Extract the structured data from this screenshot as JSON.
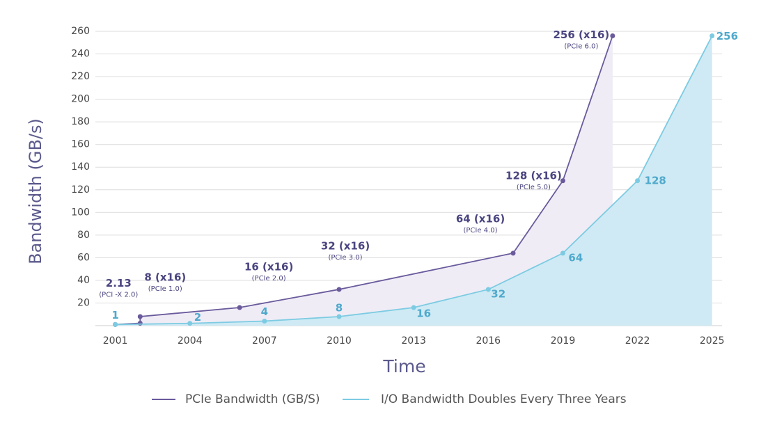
{
  "chart_data": {
    "type": "line",
    "x_label": "Time",
    "y_label": "Bandwidth (GB/s)",
    "xlim": [
      2000.2,
      2025.4
    ],
    "xticks": [
      2001,
      2004,
      2007,
      2010,
      2013,
      2016,
      2019,
      2022,
      2025
    ],
    "ylim": [
      0,
      260
    ],
    "yticks": [
      20,
      40,
      60,
      80,
      100,
      120,
      140,
      160,
      180,
      200,
      220,
      240,
      260
    ],
    "grid": true,
    "series": [
      {
        "name": "PCIe Bandwidth (GB/S)",
        "color": "#6a5a9c",
        "area_color": "#efecf6",
        "x": [
          2001,
          2002,
          2002,
          2006,
          2010,
          2017,
          2019,
          2021
        ],
        "values": [
          1,
          2.13,
          8,
          16,
          32,
          64,
          128,
          256
        ],
        "value_labels": [
          null,
          "2.13",
          "8 (x16)",
          "16 (x16)",
          "32 (x16)",
          "64 (x16)",
          "128 (x16)",
          "256 (x16)"
        ],
        "sublabels": [
          null,
          "(PCI -X 2.0)",
          "(PCIe 1.0)",
          "(PCIe 2.0)",
          "(PCIe 3.0)",
          "(PCIe 4.0)",
          "(PCIe 5.0)",
          "(PCIe 6.0)"
        ]
      },
      {
        "name": "I/O Bandwidth Doubles Every Three Years",
        "color": "#7ccbe2",
        "area_color": "#cfeaf4",
        "label_color": "#4fa9cc",
        "x": [
          2001,
          2004,
          2007,
          2010,
          2013,
          2016,
          2019,
          2022,
          2025
        ],
        "values": [
          1,
          2,
          4,
          8,
          16,
          32,
          64,
          128,
          256
        ]
      }
    ]
  }
}
